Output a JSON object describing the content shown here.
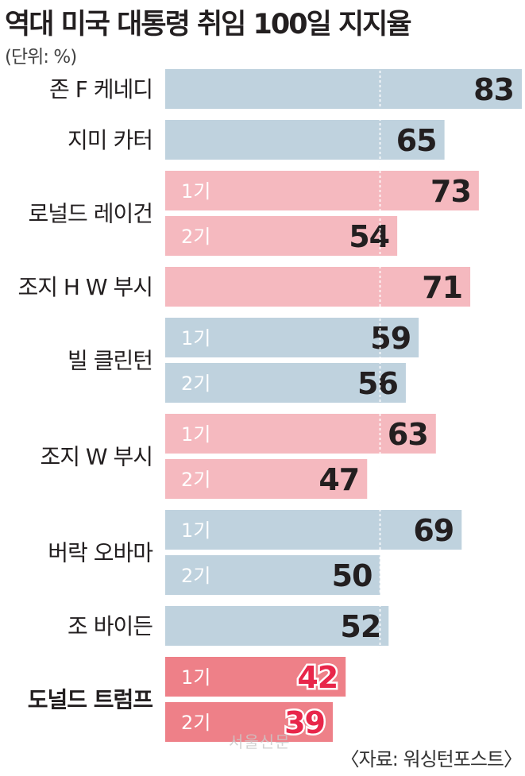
{
  "title": "역대 미국 대통령 취임 100일 지지율",
  "unit": "(단위: %)",
  "source": "〈자료: 워싱턴포스트〉",
  "watermark": "서울신문",
  "colors": {
    "democrat": "#bfd2de",
    "republican": "#f5b9bf",
    "trump": "#ee8088",
    "highlight_value": "#e8264a",
    "reference_line": "#ffffff"
  },
  "chart_data": {
    "type": "bar",
    "orientation": "horizontal",
    "title": "역대 미국 대통령 취임 100일 지지율",
    "unit": "%",
    "xlim": [
      0,
      83
    ],
    "reference_line": 50,
    "groups": [
      {
        "name": "존 F 케네디",
        "party": "democrat",
        "bars": [
          {
            "term": "",
            "value": 83
          }
        ]
      },
      {
        "name": "지미 카터",
        "party": "democrat",
        "bars": [
          {
            "term": "",
            "value": 65
          }
        ]
      },
      {
        "name": "로널드 레이건",
        "party": "republican",
        "bars": [
          {
            "term": "1기",
            "value": 73
          },
          {
            "term": "2기",
            "value": 54
          }
        ]
      },
      {
        "name": "조지 H W 부시",
        "party": "republican",
        "bars": [
          {
            "term": "",
            "value": 71
          }
        ]
      },
      {
        "name": "빌 클린턴",
        "party": "democrat",
        "bars": [
          {
            "term": "1기",
            "value": 59
          },
          {
            "term": "2기",
            "value": 56
          }
        ]
      },
      {
        "name": "조지 W 부시",
        "party": "republican",
        "bars": [
          {
            "term": "1기",
            "value": 63
          },
          {
            "term": "2기",
            "value": 47
          }
        ]
      },
      {
        "name": "버락 오바마",
        "party": "democrat",
        "bars": [
          {
            "term": "1기",
            "value": 69
          },
          {
            "term": "2기",
            "value": 50
          }
        ]
      },
      {
        "name": "조 바이든",
        "party": "democrat",
        "bars": [
          {
            "term": "",
            "value": 52
          }
        ]
      },
      {
        "name": "도널드 트럼프",
        "party": "trump",
        "highlight": true,
        "bars": [
          {
            "term": "1기",
            "value": 42
          },
          {
            "term": "2기",
            "value": 39
          }
        ]
      }
    ]
  }
}
